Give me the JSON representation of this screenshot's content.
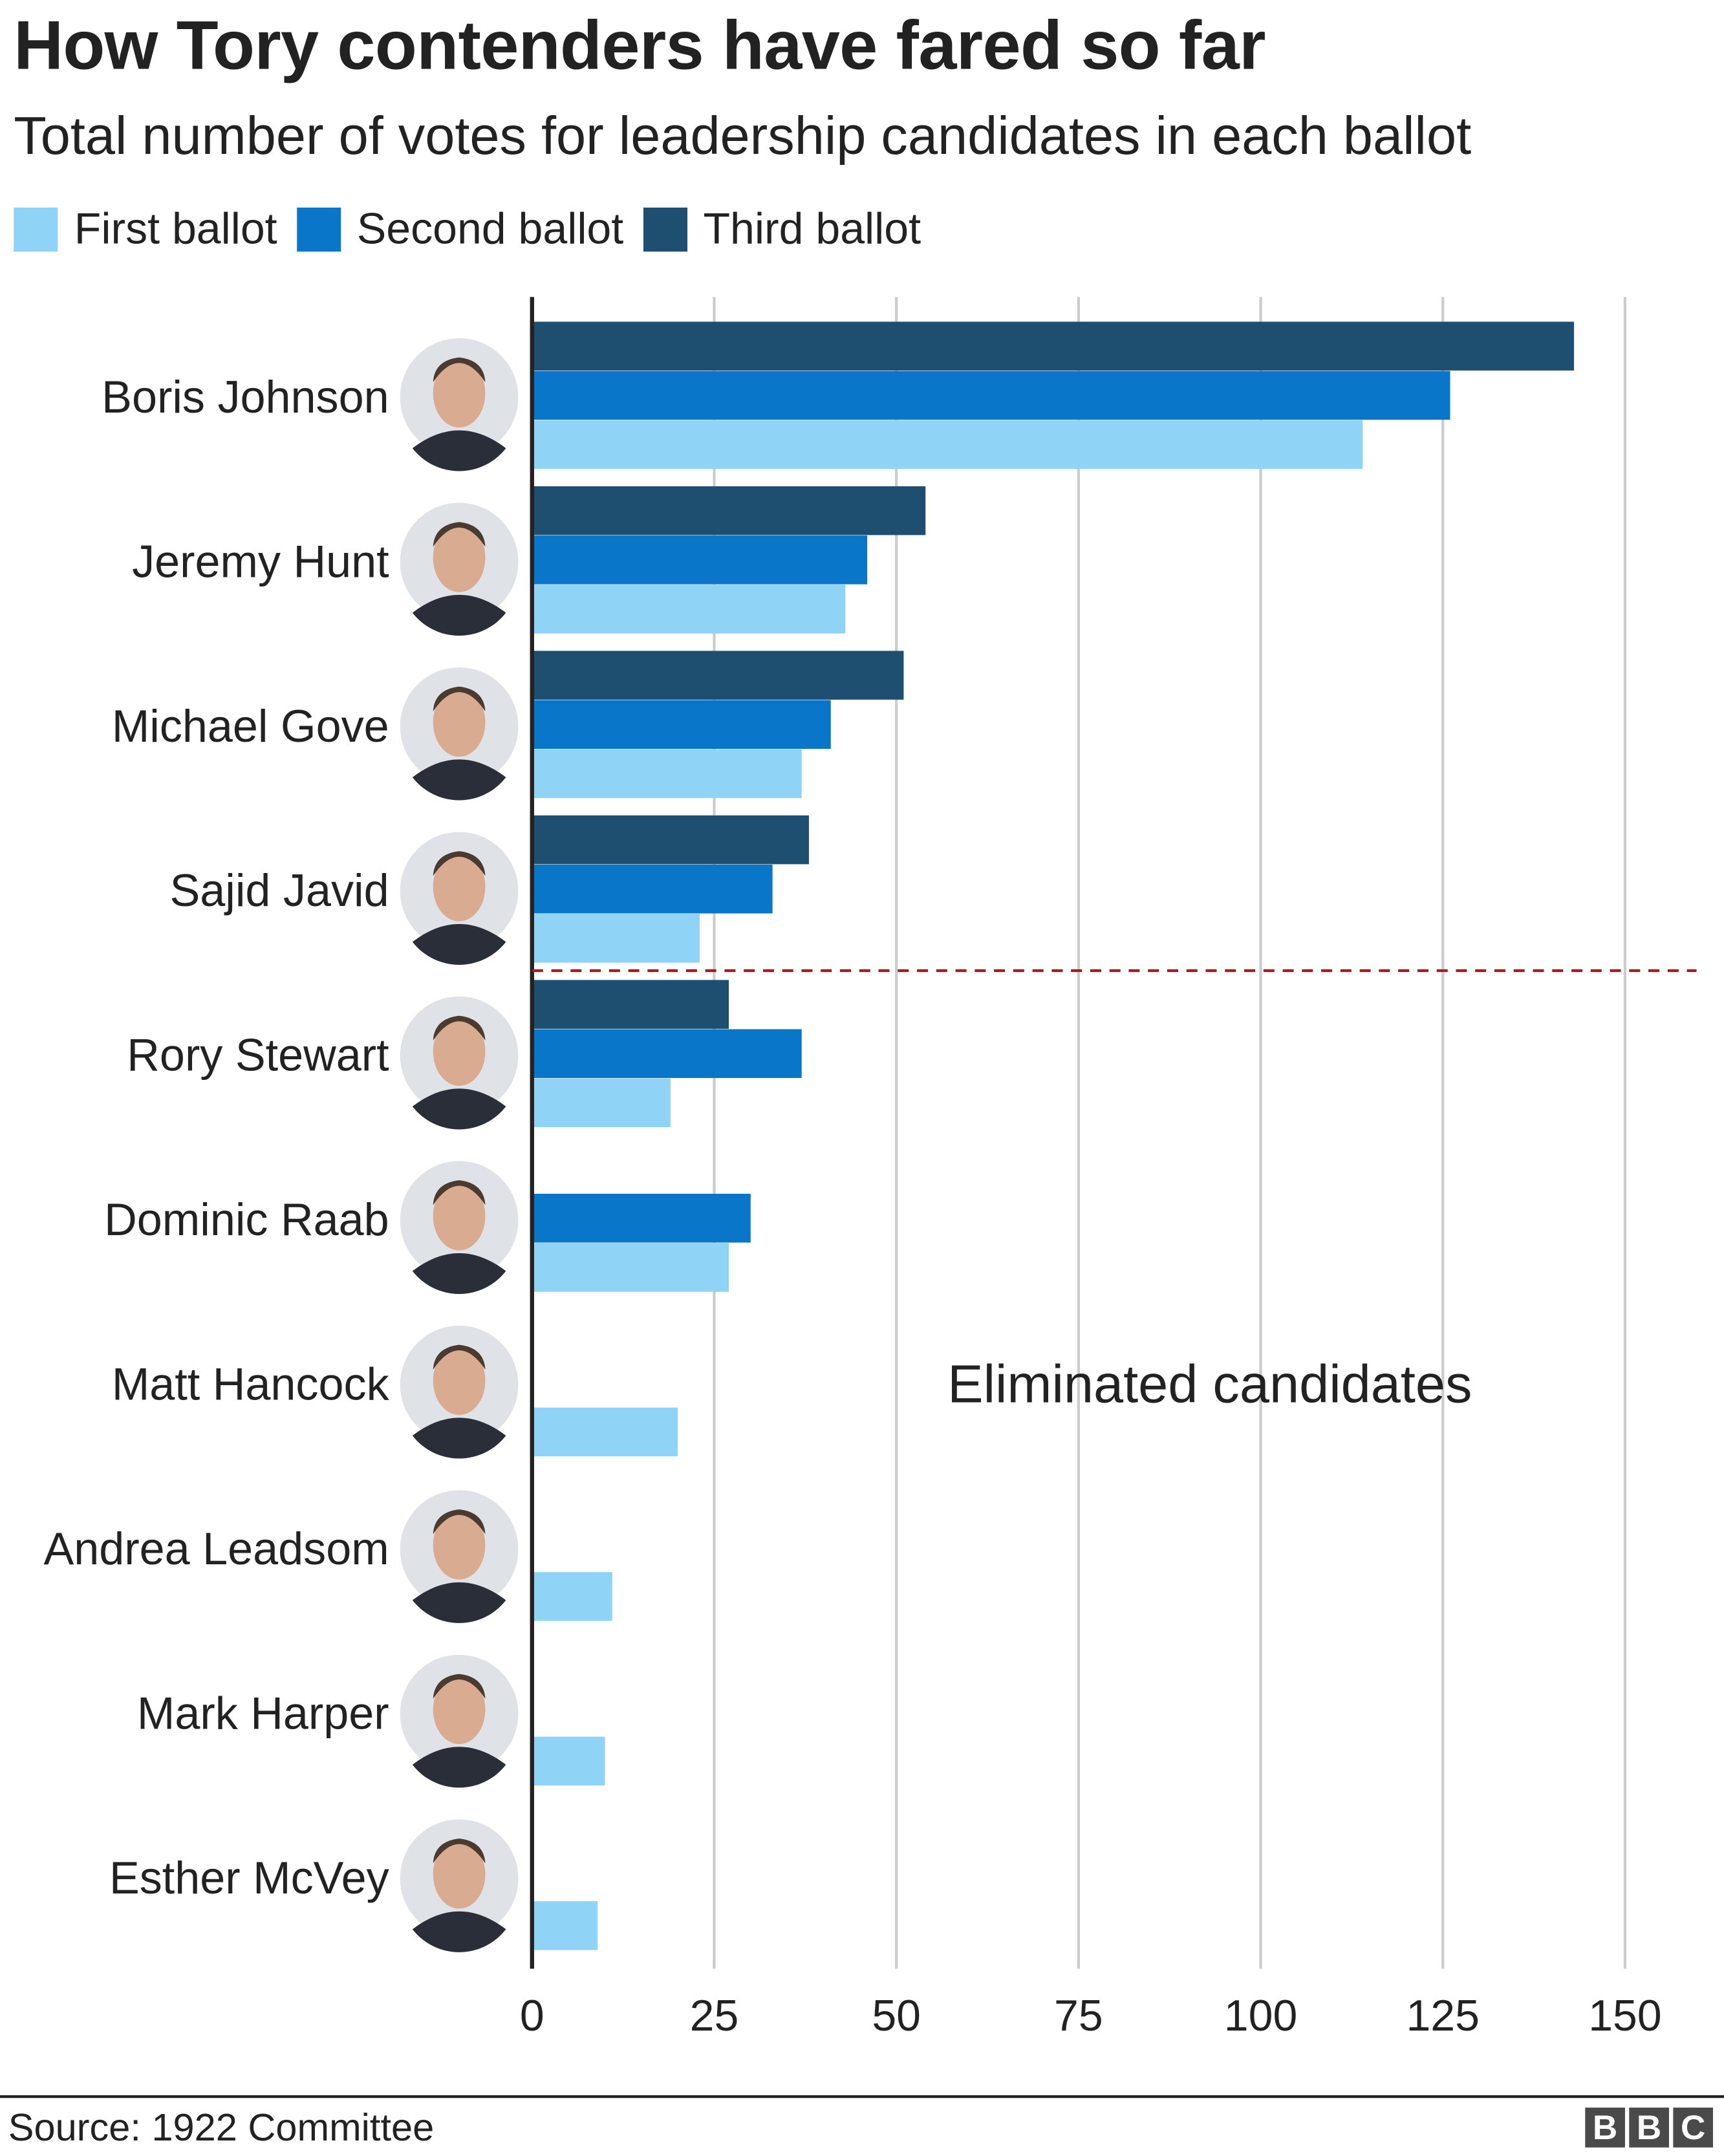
{
  "chart_data": {
    "type": "bar",
    "orientation": "horizontal",
    "title": "How Tory contenders have fared so far",
    "subtitle": "Total number of votes for leadership candidates in each ballot",
    "categories": [
      "Boris Johnson",
      "Jeremy Hunt",
      "Michael Gove",
      "Sajid Javid",
      "Rory Stewart",
      "Dominic Raab",
      "Matt Hancock",
      "Andrea Leadsom",
      "Mark Harper",
      "Esther McVey"
    ],
    "series": [
      {
        "name": "First ballot",
        "color": "#8fd4f6",
        "values": [
          114,
          43,
          37,
          23,
          19,
          27,
          20,
          11,
          10,
          9
        ]
      },
      {
        "name": "Second ballot",
        "color": "#0a76c9",
        "values": [
          126,
          46,
          41,
          33,
          37,
          30,
          null,
          null,
          null,
          null
        ]
      },
      {
        "name": "Third ballot",
        "color": "#1e4f70",
        "values": [
          143,
          54,
          51,
          38,
          27,
          null,
          null,
          null,
          null,
          null
        ]
      }
    ],
    "xlim": [
      0,
      160
    ],
    "xticks": [
      0,
      25,
      50,
      75,
      100,
      125,
      150
    ],
    "grid": true,
    "legend_position": "top-left",
    "annotation": {
      "text": "Eliminated candidates",
      "cutoff_after": "Sajid Javid",
      "line_color": "#b0151b"
    }
  },
  "footer": {
    "source": "Source: 1922 Committee",
    "logo": [
      "B",
      "B",
      "C"
    ]
  }
}
